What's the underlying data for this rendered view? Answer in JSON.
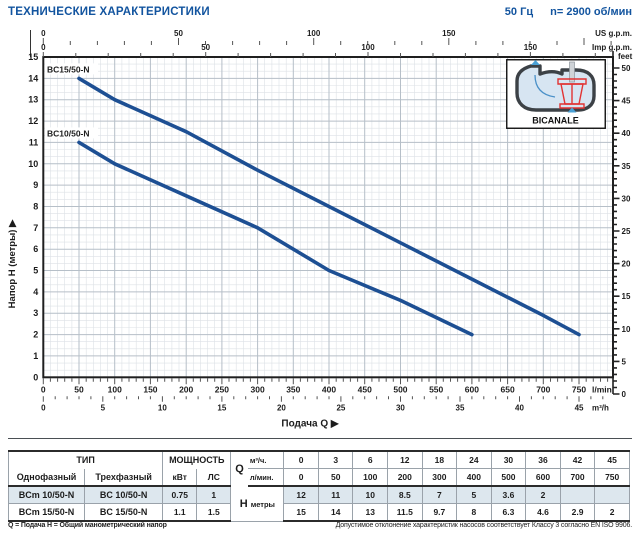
{
  "header": {
    "title": "ТЕХНИЧЕСКИЕ ХАРАКТЕРИСТИКИ",
    "frequency": "50 Гц",
    "speed": "n= 2900 об/мин"
  },
  "colors": {
    "accent_blue": "#12549f",
    "curve_blue": "#1d4f93",
    "grid_minor": "#dde1e6",
    "grid_major": "#b6bfc8",
    "frame_black": "#1f1f1f",
    "table_shade": "#dde7ee",
    "inset_fill": "#d7e5f2",
    "impeller_red": "#e23333",
    "arrow_blue": "#49a0d5"
  },
  "chart_data": {
    "type": "line",
    "title": "",
    "xlabel": "Подача Q",
    "ylabel": "Напор H (метры)",
    "x_axis_unit": "l/min",
    "xlim_lmin": [
      0,
      800
    ],
    "ylim_m": [
      0,
      15
    ],
    "grid": "on",
    "scales": {
      "us_gpm": {
        "unit": "US g.p.m.",
        "labels": [
          0,
          50,
          100,
          150
        ],
        "lmin_per_unit": 3.785,
        "tick_step": 10
      },
      "imp_gpm": {
        "unit": "Imp g.p.m.",
        "labels": [
          0,
          50,
          100,
          150
        ],
        "lmin_per_unit": 4.546,
        "tick_step": 10
      },
      "lmin": {
        "unit": "l/min",
        "label_step": 50,
        "tick_step": 10,
        "max_label": 750
      },
      "m3h": {
        "unit": "m³/h",
        "label_step": 5,
        "tick_step": 1,
        "max_label": 45,
        "lmin_per_unit": 16.6667
      },
      "feet": {
        "unit": "feet",
        "label_step": 5,
        "tick_step": 1,
        "max_label": 50,
        "m_per_unit": 0.3048
      }
    },
    "y_label_step_m": 1,
    "series": [
      {
        "name": "BC15/50-N",
        "points_lmin_m": [
          [
            50,
            14
          ],
          [
            100,
            13
          ],
          [
            200,
            11.5
          ],
          [
            300,
            9.7
          ],
          [
            400,
            8
          ],
          [
            500,
            6.3
          ],
          [
            600,
            4.6
          ],
          [
            700,
            2.9
          ],
          [
            750,
            2
          ]
        ]
      },
      {
        "name": "BC10/50-N",
        "points_lmin_m": [
          [
            50,
            11
          ],
          [
            100,
            10
          ],
          [
            200,
            8.5
          ],
          [
            300,
            7
          ],
          [
            400,
            5
          ],
          [
            500,
            3.6
          ],
          [
            600,
            2
          ]
        ]
      }
    ],
    "inset_label": "BICANALE"
  },
  "table": {
    "headers": {
      "type": "ТИП",
      "single_phase": "Однофазный",
      "three_phase": "Трехфазный",
      "power": "МОЩНОСТЬ",
      "kw": "кВт",
      "hp": "ЛС",
      "q": "Q",
      "m3h": "м³/ч.",
      "lmin": "л/мин.",
      "h": "H",
      "meters": "метры"
    },
    "q_m3h": [
      "0",
      "3",
      "6",
      "12",
      "18",
      "24",
      "30",
      "36",
      "42",
      "45"
    ],
    "q_lmin": [
      "0",
      "50",
      "100",
      "200",
      "300",
      "400",
      "500",
      "600",
      "700",
      "750"
    ],
    "rows": [
      {
        "single": "BCm 10/50-N",
        "three": "BC 10/50-N",
        "kw": "0.75",
        "hp": "1",
        "h": [
          "12",
          "11",
          "10",
          "8.5",
          "7",
          "5",
          "3.6",
          "2",
          "",
          ""
        ],
        "shaded": true
      },
      {
        "single": "BCm 15/50-N",
        "three": "BC 15/50-N",
        "kw": "1.1",
        "hp": "1.5",
        "h": [
          "15",
          "14",
          "13",
          "11.5",
          "9.7",
          "8",
          "6.3",
          "4.6",
          "2.9",
          "2"
        ],
        "shaded": false
      }
    ]
  },
  "footnotes": {
    "left": "Q = Подача   H = Общий манометрический напор",
    "right": "Допустимое отклонение характеристик насосов соответствует Классу 3 согласно EN ISO 9906."
  }
}
